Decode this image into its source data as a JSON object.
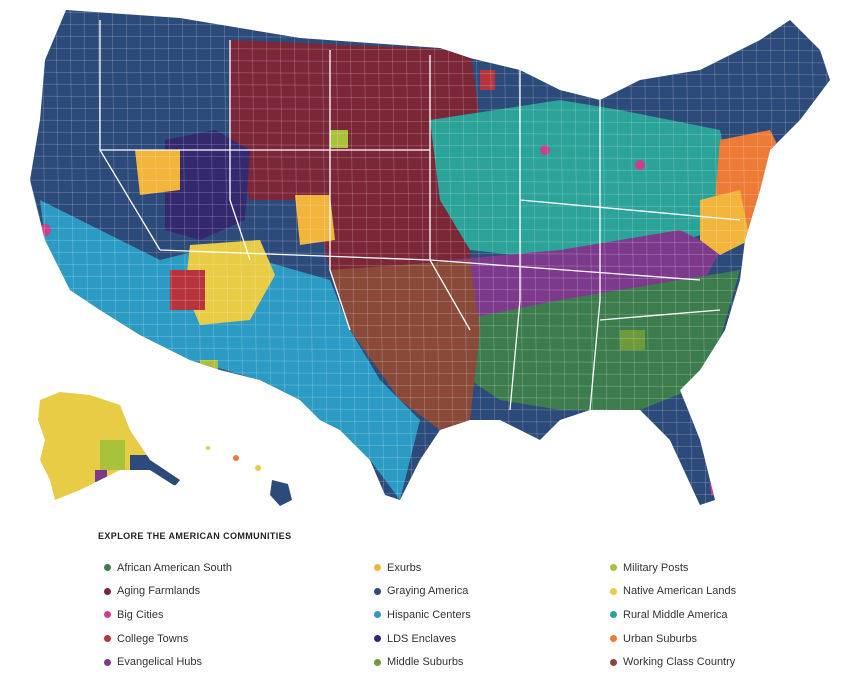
{
  "legend": {
    "title": "EXPLORE THE AMERICAN COMMUNITIES",
    "columns": [
      [
        {
          "label": "African American South",
          "color": "#3d7d4d"
        },
        {
          "label": "Aging Farmlands",
          "color": "#7b2738"
        },
        {
          "label": "Big Cities",
          "color": "#cc3d8e"
        },
        {
          "label": "College Towns",
          "color": "#b8343d"
        },
        {
          "label": "Evangelical Hubs",
          "color": "#7d3a8c"
        }
      ],
      [
        {
          "label": "Exurbs",
          "color": "#f2b43a"
        },
        {
          "label": "Graying America",
          "color": "#2c4a7a"
        },
        {
          "label": "Hispanic Centers",
          "color": "#2c9bc4"
        },
        {
          "label": "LDS Enclaves",
          "color": "#34286e"
        },
        {
          "label": "Middle Suburbs",
          "color": "#6e9a3c"
        }
      ],
      [
        {
          "label": "Military Posts",
          "color": "#a8c23c"
        },
        {
          "label": "Native American Lands",
          "color": "#e8cc45"
        },
        {
          "label": "Rural Middle America",
          "color": "#2ba398"
        },
        {
          "label": "Urban Suburbs",
          "color": "#ee7b35"
        },
        {
          "label": "Working Class Country",
          "color": "#8a4a3a"
        }
      ]
    ]
  },
  "map": {
    "region_colors": {
      "graying": "#2c4a7a",
      "farmlands": "#7b2738",
      "rural_middle": "#2ba398",
      "evangelical": "#7d3a8c",
      "african_american": "#3d7d4d",
      "hispanic": "#2c9bc4",
      "lds": "#34286e",
      "native": "#e8cc45",
      "exurbs": "#f2b43a",
      "urban_suburbs": "#ee7b35",
      "working_class": "#8a4a3a",
      "big_cities": "#cc3d8e",
      "college": "#b8343d",
      "military": "#a8c23c",
      "middle_suburbs": "#6e9a3c"
    }
  }
}
